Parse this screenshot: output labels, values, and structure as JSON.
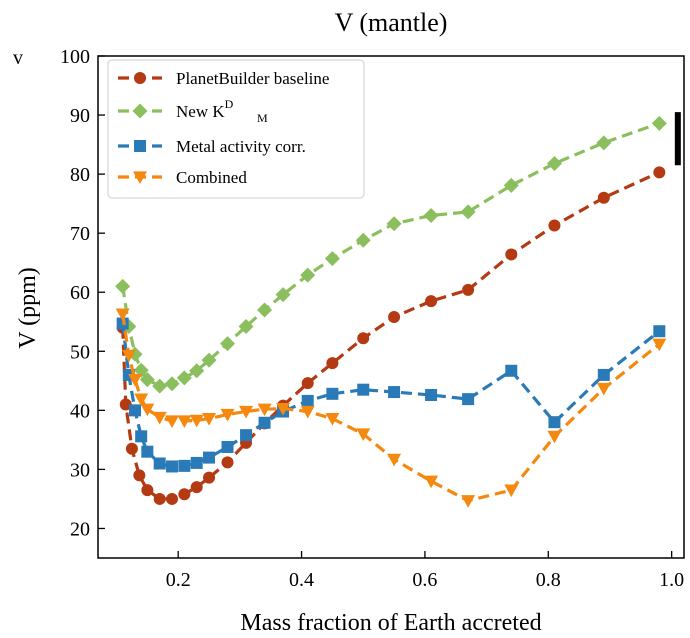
{
  "chart_data": {
    "type": "line",
    "title": "V (mantle)",
    "corner_label": "v",
    "xlabel": "Mass fraction of Earth accreted",
    "ylabel": "V (ppm)",
    "xlim": [
      0.07,
      1.02
    ],
    "ylim": [
      15,
      100
    ],
    "xticks": [
      0.2,
      0.4,
      0.6,
      0.8,
      1.0
    ],
    "xtick_labels": [
      "0.2",
      "0.4",
      "0.6",
      "0.8",
      "1.0"
    ],
    "yticks": [
      20,
      30,
      40,
      50,
      60,
      70,
      80,
      90,
      100
    ],
    "ytick_labels": [
      "20",
      "30",
      "40",
      "50",
      "60",
      "70",
      "80",
      "90",
      "100"
    ],
    "grid": false,
    "legend_position": "top-left",
    "error_bar": {
      "x": 1.01,
      "y_low": 81.5,
      "y_high": 90.5
    },
    "series": [
      {
        "name": "PlanetBuilder baseline",
        "color": "#b33a12",
        "marker": "circle",
        "x": [
          0.11,
          0.115,
          0.125,
          0.137,
          0.15,
          0.17,
          0.19,
          0.21,
          0.23,
          0.25,
          0.28,
          0.31,
          0.34,
          0.37,
          0.41,
          0.45,
          0.5,
          0.55,
          0.61,
          0.67,
          0.74,
          0.81,
          0.89,
          0.98
        ],
        "y": [
          54,
          41,
          33.5,
          29,
          26.5,
          25,
          25,
          25.8,
          27,
          28.6,
          31.2,
          34.5,
          37.8,
          40.8,
          44.6,
          48,
          52.2,
          55.8,
          58.5,
          60.4,
          66.4,
          71.3,
          76,
          80.3
        ]
      },
      {
        "name": "New K_M^D",
        "legend_base": "New K",
        "legend_sup": "D",
        "legend_sub": "M",
        "color": "#8bbf5e",
        "marker": "diamond",
        "x": [
          0.11,
          0.12,
          0.13,
          0.14,
          0.15,
          0.17,
          0.19,
          0.21,
          0.23,
          0.25,
          0.28,
          0.31,
          0.34,
          0.37,
          0.41,
          0.45,
          0.5,
          0.55,
          0.61,
          0.67,
          0.74,
          0.81,
          0.89,
          0.98
        ],
        "y": [
          61,
          54.2,
          49.5,
          46.8,
          45.2,
          44.1,
          44.5,
          45.5,
          46.7,
          48.5,
          51.3,
          54.2,
          57,
          59.6,
          62.9,
          65.7,
          68.8,
          71.6,
          73,
          73.6,
          78.1,
          81.8,
          85.3,
          88.6
        ]
      },
      {
        "name": "Metal activity corr.",
        "color": "#2a7ab8",
        "marker": "square",
        "x": [
          0.11,
          0.12,
          0.13,
          0.14,
          0.15,
          0.17,
          0.19,
          0.21,
          0.23,
          0.25,
          0.28,
          0.31,
          0.34,
          0.37,
          0.41,
          0.45,
          0.5,
          0.55,
          0.61,
          0.67,
          0.74,
          0.81,
          0.89,
          0.98
        ],
        "y": [
          54.7,
          46,
          40,
          35.6,
          33,
          31,
          30.5,
          30.6,
          31.1,
          32,
          33.8,
          35.8,
          37.9,
          39.8,
          41.6,
          42.8,
          43.5,
          43.1,
          42.6,
          41.9,
          46.7,
          38,
          46,
          53.4
        ]
      },
      {
        "name": "Combined",
        "color": "#f5880f",
        "marker": "triangle-down",
        "x": [
          0.11,
          0.12,
          0.13,
          0.14,
          0.15,
          0.17,
          0.19,
          0.21,
          0.23,
          0.25,
          0.28,
          0.31,
          0.34,
          0.37,
          0.41,
          0.45,
          0.5,
          0.55,
          0.61,
          0.67,
          0.74,
          0.81,
          0.89,
          0.98
        ],
        "y": [
          56.3,
          49.3,
          45.2,
          41.9,
          40.2,
          38.8,
          38.2,
          38.2,
          38.3,
          38.6,
          39.3,
          39.8,
          40.2,
          40.3,
          39.8,
          38.6,
          36,
          31.7,
          28,
          24.7,
          26.5,
          35.6,
          43.7,
          51.2
        ]
      }
    ]
  }
}
